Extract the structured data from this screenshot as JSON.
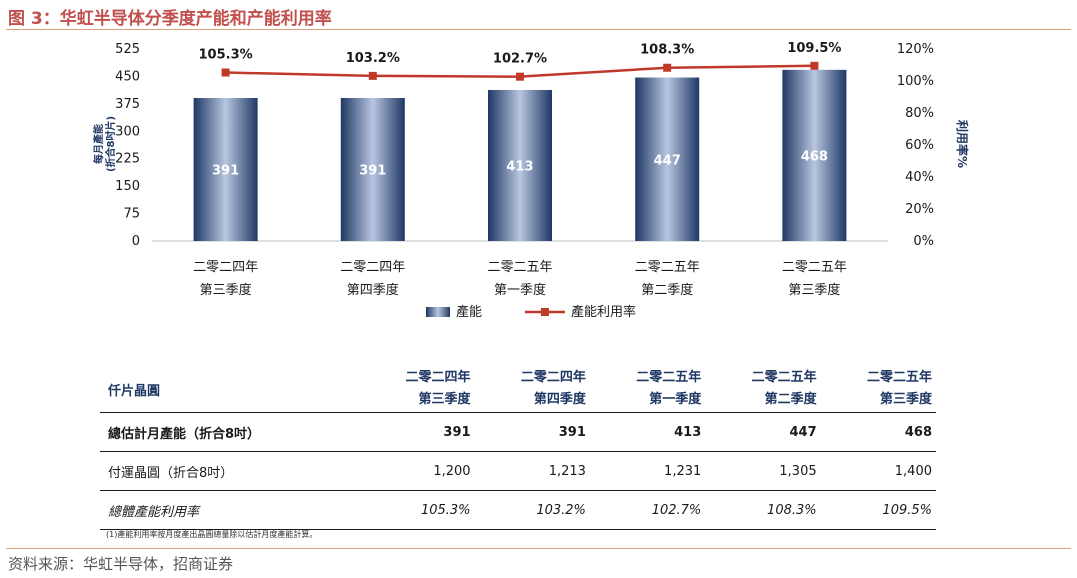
{
  "figure_title": "图 3：华虹半导体分季度产能和产能利用率",
  "source": "资料来源：华虹半导体，招商证券",
  "footnote": "(1)產能利用率按月度產出晶圓總量除以估計月度產能計算。",
  "colors": {
    "bar_dark": "#1f3864",
    "bar_light": "#a9b9d6",
    "line": "#c0392b",
    "title": "#c0504d"
  },
  "chart_data": {
    "type": "bar",
    "categories": [
      [
        "二零二四年",
        "第三季度"
      ],
      [
        "二零二四年",
        "第四季度"
      ],
      [
        "二零二五年",
        "第一季度"
      ],
      [
        "二零二五年",
        "第二季度"
      ],
      [
        "二零二五年",
        "第三季度"
      ]
    ],
    "series": [
      {
        "name": "產能",
        "type": "bar",
        "values": [
          391,
          391,
          413,
          447,
          468
        ],
        "labels": [
          "391",
          "391",
          "413",
          "447",
          "468"
        ]
      },
      {
        "name": "產能利用率",
        "type": "line",
        "axis": "right",
        "values": [
          105.3,
          103.2,
          102.7,
          108.3,
          109.5
        ],
        "labels": [
          "105.3%",
          "103.2%",
          "102.7%",
          "108.3%",
          "109.5%"
        ]
      }
    ],
    "ylabel": [
      "每月產能",
      "(折合8吋片)"
    ],
    "y2label": "利用率%",
    "ylim": [
      0,
      525
    ],
    "yticks": [
      "0",
      "75",
      "150",
      "225",
      "300",
      "375",
      "450",
      "525"
    ],
    "y2lim": [
      0,
      120
    ],
    "y2ticks": [
      "0%",
      "20%",
      "40%",
      "60%",
      "80%",
      "100%",
      "120%"
    ],
    "legend": {
      "placement": "bottom",
      "items": [
        "產能",
        "產能利用率"
      ]
    },
    "grid": false
  },
  "table": {
    "corner": "仟片晶圓",
    "headers": [
      [
        "二零二四年",
        "第三季度"
      ],
      [
        "二零二四年",
        "第四季度"
      ],
      [
        "二零二五年",
        "第一季度"
      ],
      [
        "二零二五年",
        "第二季度"
      ],
      [
        "二零二五年",
        "第三季度"
      ]
    ],
    "rows": [
      {
        "label": "總估計月產能（折合8吋）",
        "values": [
          "391",
          "391",
          "413",
          "447",
          "468"
        ]
      },
      {
        "label": "付運晶圓（折合8吋）",
        "values": [
          "1,200",
          "1,213",
          "1,231",
          "1,305",
          "1,400"
        ]
      },
      {
        "label": "總體產能利用率",
        "values": [
          "105.3%",
          "103.2%",
          "102.7%",
          "108.3%",
          "109.5%"
        ]
      }
    ]
  }
}
